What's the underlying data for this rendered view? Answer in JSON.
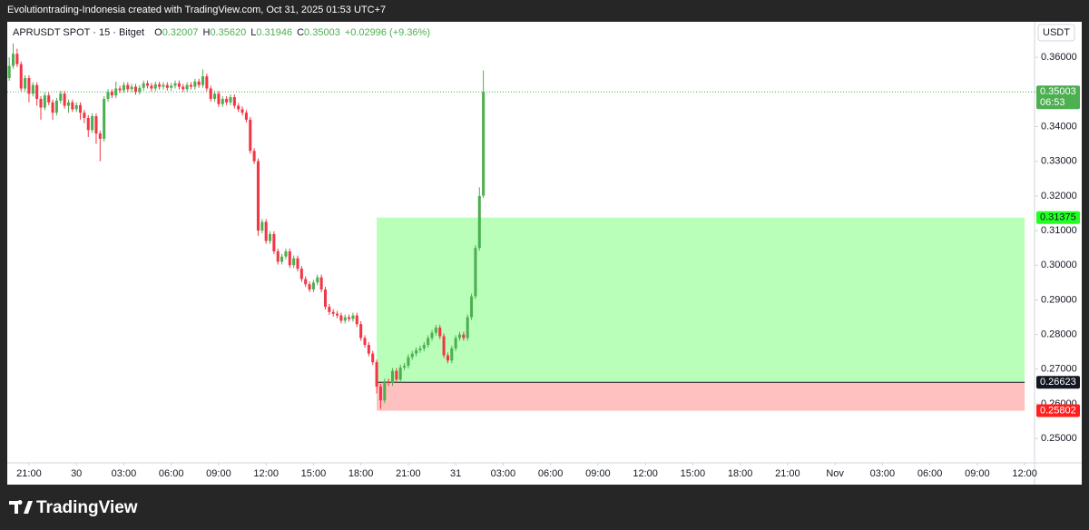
{
  "header": {
    "text": "Evolutiontrading-Indonesia created with TradingView.com, Oct 31, 2025 01:53 UTC+7"
  },
  "footer": {
    "brand": "TradingView"
  },
  "chart_data": {
    "type": "candlestick",
    "symbol": "APRUSDT SPOT · 15 · Bitget",
    "ohlc_legend": [
      {
        "label": "O",
        "value": "0.32007"
      },
      {
        "label": "H",
        "value": "0.35620"
      },
      {
        "label": "L",
        "value": "0.31946"
      },
      {
        "label": "C",
        "value": "0.35003"
      }
    ],
    "change": "+0.02996 (+9.36%)",
    "currency": "USDT",
    "up_color": "#4caf50",
    "down_color": "#f23645",
    "grid": false,
    "open": [
      0.354,
      0.3575,
      0.361,
      0.358,
      0.351,
      0.354,
      0.3495,
      0.352,
      0.348,
      0.3455,
      0.349,
      0.347,
      0.344,
      0.3475,
      0.3495,
      0.346,
      0.347,
      0.345,
      0.3462,
      0.344,
      0.3425,
      0.339,
      0.343,
      0.338,
      0.3365,
      0.348,
      0.35,
      0.349,
      0.351,
      0.3505,
      0.352,
      0.3508,
      0.3515,
      0.35,
      0.3512,
      0.3525,
      0.3518,
      0.351,
      0.3522,
      0.3515,
      0.352,
      0.3512,
      0.3518,
      0.3525,
      0.3515,
      0.3508,
      0.352,
      0.3515,
      0.353,
      0.352,
      0.3545,
      0.351,
      0.348,
      0.3495,
      0.3465,
      0.348,
      0.347,
      0.3485,
      0.346,
      0.345,
      0.344,
      0.342,
      0.333,
      0.33,
      0.31,
      0.3125,
      0.307,
      0.309,
      0.304,
      0.301,
      0.3025,
      0.304,
      0.3,
      0.302,
      0.299,
      0.296,
      0.2945,
      0.293,
      0.295,
      0.2965,
      0.293,
      0.288,
      0.2865,
      0.286,
      0.2855,
      0.284,
      0.285,
      0.2845,
      0.2855,
      0.283,
      0.279,
      0.277,
      0.2745,
      0.272,
      0.265,
      0.261,
      0.2665,
      0.266,
      0.2695,
      0.267,
      0.2705,
      0.271,
      0.2735,
      0.2745,
      0.2755,
      0.276,
      0.277,
      0.279,
      0.2805,
      0.282,
      0.2795,
      0.274,
      0.2725,
      0.276,
      0.279,
      0.28,
      0.279,
      0.285,
      0.291,
      0.305,
      0.32007
    ],
    "high": [
      0.36,
      0.364,
      0.3625,
      0.3588,
      0.3548,
      0.3548,
      0.3528,
      0.3528,
      0.3488,
      0.3498,
      0.3498,
      0.3478,
      0.3483,
      0.3503,
      0.3503,
      0.3478,
      0.3478,
      0.347,
      0.347,
      0.3448,
      0.3433,
      0.3438,
      0.3438,
      0.3388,
      0.3488,
      0.3508,
      0.3508,
      0.353,
      0.3518,
      0.3528,
      0.3528,
      0.3523,
      0.3523,
      0.352,
      0.3533,
      0.3533,
      0.3526,
      0.353,
      0.353,
      0.3528,
      0.3528,
      0.3526,
      0.3533,
      0.3533,
      0.3523,
      0.3528,
      0.3528,
      0.3538,
      0.3538,
      0.3565,
      0.3553,
      0.3518,
      0.3503,
      0.3503,
      0.3488,
      0.3488,
      0.3493,
      0.3493,
      0.3468,
      0.3458,
      0.3448,
      0.3428,
      0.3338,
      0.3308,
      0.3133,
      0.3133,
      0.3098,
      0.3098,
      0.3048,
      0.3033,
      0.3048,
      0.3048,
      0.3028,
      0.3028,
      0.2998,
      0.2968,
      0.2953,
      0.2958,
      0.2973,
      0.2973,
      0.2938,
      0.2888,
      0.2873,
      0.2868,
      0.2863,
      0.2858,
      0.2858,
      0.2863,
      0.2863,
      0.2838,
      0.2798,
      0.2778,
      0.2753,
      0.2728,
      0.2658,
      0.2673,
      0.2673,
      0.2703,
      0.2703,
      0.2713,
      0.2718,
      0.2743,
      0.2753,
      0.2763,
      0.2768,
      0.2778,
      0.2798,
      0.2813,
      0.2828,
      0.2828,
      0.2803,
      0.2748,
      0.2768,
      0.2798,
      0.2808,
      0.2808,
      0.2858,
      0.2918,
      0.3058,
      0.3225,
      0.3562
    ],
    "low": [
      0.3532,
      0.3567,
      0.3572,
      0.3502,
      0.3502,
      0.347,
      0.3487,
      0.346,
      0.342,
      0.3447,
      0.3462,
      0.342,
      0.3432,
      0.3467,
      0.3452,
      0.344,
      0.3442,
      0.3442,
      0.342,
      0.341,
      0.337,
      0.3382,
      0.335,
      0.33,
      0.3357,
      0.3472,
      0.3482,
      0.3482,
      0.3497,
      0.3497,
      0.35,
      0.35,
      0.3492,
      0.3492,
      0.3504,
      0.351,
      0.3502,
      0.3502,
      0.3507,
      0.3507,
      0.3504,
      0.3504,
      0.351,
      0.3507,
      0.35,
      0.35,
      0.3507,
      0.3507,
      0.3512,
      0.3512,
      0.3502,
      0.3472,
      0.3472,
      0.3457,
      0.3457,
      0.3462,
      0.3462,
      0.3452,
      0.3442,
      0.3432,
      0.3412,
      0.3322,
      0.3292,
      0.3085,
      0.3092,
      0.3062,
      0.3062,
      0.3032,
      0.3002,
      0.3002,
      0.3017,
      0.2992,
      0.2992,
      0.2982,
      0.2952,
      0.2937,
      0.2922,
      0.2922,
      0.2942,
      0.2922,
      0.2872,
      0.2857,
      0.2852,
      0.2847,
      0.2832,
      0.2832,
      0.2837,
      0.2837,
      0.2822,
      0.2782,
      0.2762,
      0.2737,
      0.2712,
      0.263,
      0.2585,
      0.2602,
      0.2652,
      0.2652,
      0.2662,
      0.2662,
      0.2697,
      0.2702,
      0.2727,
      0.2737,
      0.2747,
      0.2752,
      0.2762,
      0.2782,
      0.2797,
      0.2787,
      0.2732,
      0.2717,
      0.2717,
      0.2752,
      0.2782,
      0.2782,
      0.2782,
      0.2842,
      0.2902,
      0.3042,
      0.31946
    ],
    "close": [
      0.3575,
      0.361,
      0.358,
      0.351,
      0.354,
      0.3495,
      0.352,
      0.348,
      0.3455,
      0.349,
      0.347,
      0.344,
      0.3475,
      0.3495,
      0.346,
      0.347,
      0.345,
      0.3462,
      0.344,
      0.3425,
      0.339,
      0.343,
      0.338,
      0.3365,
      0.348,
      0.35,
      0.349,
      0.351,
      0.3505,
      0.352,
      0.3508,
      0.3515,
      0.35,
      0.3512,
      0.3525,
      0.3518,
      0.351,
      0.3522,
      0.3515,
      0.352,
      0.3512,
      0.3518,
      0.3525,
      0.3515,
      0.3508,
      0.352,
      0.3515,
      0.353,
      0.352,
      0.3545,
      0.351,
      0.348,
      0.3495,
      0.3465,
      0.348,
      0.347,
      0.3485,
      0.346,
      0.345,
      0.344,
      0.342,
      0.333,
      0.33,
      0.31,
      0.3125,
      0.307,
      0.309,
      0.304,
      0.301,
      0.3025,
      0.304,
      0.3,
      0.302,
      0.299,
      0.296,
      0.2945,
      0.293,
      0.295,
      0.2965,
      0.293,
      0.288,
      0.2865,
      0.286,
      0.2855,
      0.284,
      0.285,
      0.2845,
      0.2855,
      0.283,
      0.279,
      0.277,
      0.2745,
      0.272,
      0.265,
      0.261,
      0.2665,
      0.266,
      0.2695,
      0.267,
      0.2705,
      0.271,
      0.2735,
      0.2745,
      0.2755,
      0.276,
      0.277,
      0.279,
      0.2805,
      0.282,
      0.2795,
      0.274,
      0.2725,
      0.276,
      0.279,
      0.28,
      0.279,
      0.285,
      0.291,
      0.305,
      0.32,
      0.35003
    ],
    "xlim": [
      -0.5,
      259.5
    ],
    "xticks": [
      {
        "value": 5,
        "label": "21:00"
      },
      {
        "value": 17,
        "label": "30"
      },
      {
        "value": 29,
        "label": "03:00"
      },
      {
        "value": 41,
        "label": "06:00"
      },
      {
        "value": 53,
        "label": "09:00"
      },
      {
        "value": 65,
        "label": "12:00"
      },
      {
        "value": 77,
        "label": "15:00"
      },
      {
        "value": 89,
        "label": "18:00"
      },
      {
        "value": 101,
        "label": "21:00"
      },
      {
        "value": 113,
        "label": "31"
      },
      {
        "value": 125,
        "label": "03:00"
      },
      {
        "value": 137,
        "label": "06:00"
      },
      {
        "value": 149,
        "label": "09:00"
      },
      {
        "value": 161,
        "label": "12:00"
      },
      {
        "value": 173,
        "label": "15:00"
      },
      {
        "value": 185,
        "label": "18:00"
      },
      {
        "value": 197,
        "label": "21:00"
      },
      {
        "value": 209,
        "label": "Nov"
      },
      {
        "value": 221,
        "label": "03:00"
      },
      {
        "value": 233,
        "label": "06:00"
      },
      {
        "value": 245,
        "label": "09:00"
      },
      {
        "value": 257,
        "label": "12:00"
      }
    ],
    "ylim": [
      0.2435,
      0.3692
    ],
    "yticks": [
      {
        "value": 0.25,
        "label": "0.25000"
      },
      {
        "value": 0.26,
        "label": "0.26000"
      },
      {
        "value": 0.27,
        "label": "0.27000"
      },
      {
        "value": 0.28,
        "label": "0.28000"
      },
      {
        "value": 0.29,
        "label": "0.29000"
      },
      {
        "value": 0.3,
        "label": "0.30000"
      },
      {
        "value": 0.31,
        "label": "0.31000"
      },
      {
        "value": 0.32,
        "label": "0.32000"
      },
      {
        "value": 0.33,
        "label": "0.33000"
      },
      {
        "value": 0.34,
        "label": "0.34000"
      },
      {
        "value": 0.35,
        "label": "0.35000"
      },
      {
        "value": 0.36,
        "label": "0.36000"
      }
    ],
    "last_price": {
      "value": 0.35003,
      "countdown": "06:53"
    },
    "position": {
      "start": 93,
      "end": 257,
      "entry": 0.26623,
      "target": 0.31375,
      "stop": 0.25802
    }
  }
}
